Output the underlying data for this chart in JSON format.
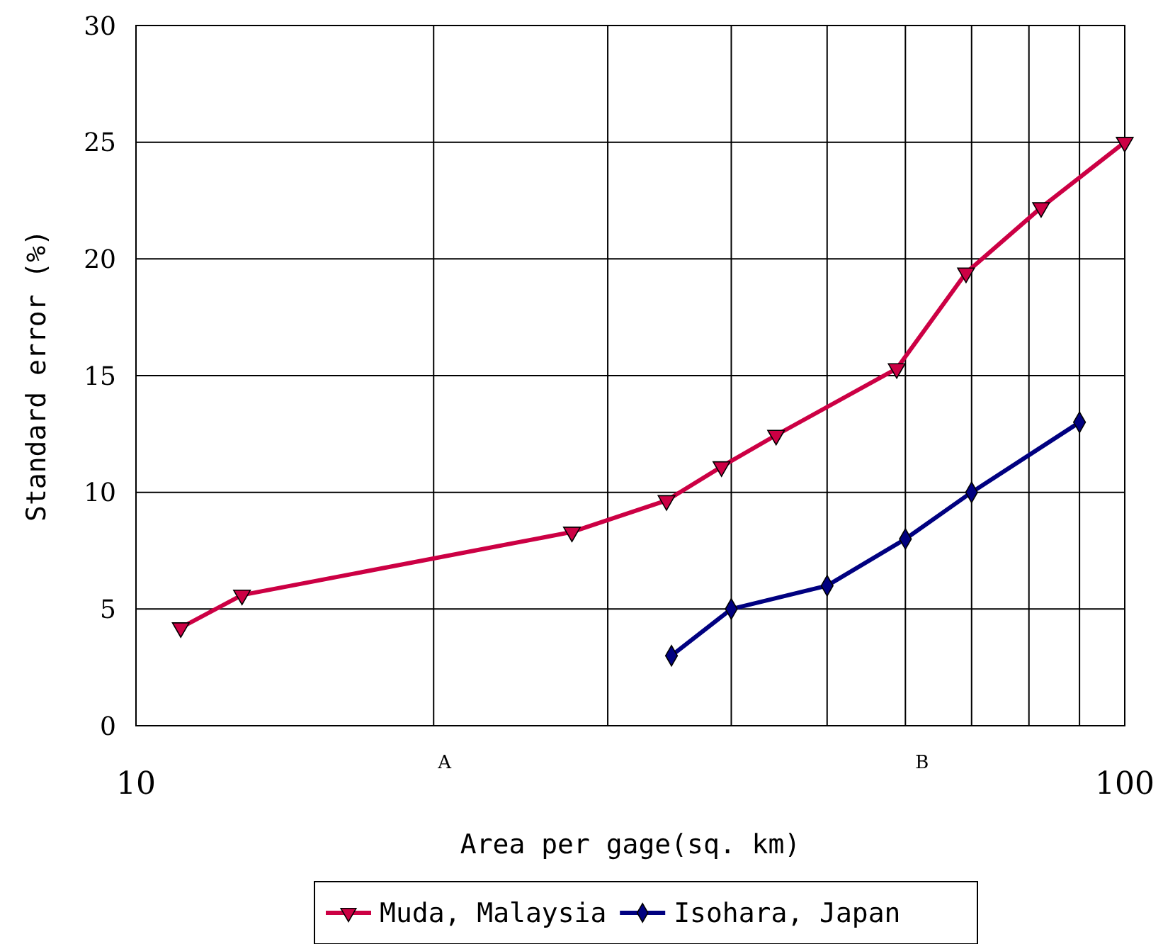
{
  "chart_data": {
    "type": "line",
    "xlabel": "Area per gage(sq. km)",
    "ylabel": "Standard error (%)",
    "log": "x",
    "xlim": [
      10,
      100
    ],
    "xticks": [
      10,
      {
        "value": 20,
        "label": null
      },
      {
        "value": 30,
        "label": null
      },
      {
        "value": 40,
        "label": null
      },
      {
        "value": 50,
        "label": null
      },
      {
        "value": 60,
        "label": null
      },
      {
        "value": 70,
        "label": null
      },
      {
        "value": 80,
        "label": null
      },
      {
        "value": 90,
        "label": null
      },
      100
    ],
    "annotations": [
      "A",
      "B"
    ],
    "ylim": [
      0,
      30
    ],
    "yticks": [
      0,
      5,
      10,
      15,
      20,
      25,
      30
    ],
    "grid": true,
    "legend": "bottom",
    "series": [
      {
        "name": "Muda, Malaysia",
        "color": "#cc0044",
        "marker": "triangle",
        "x": [
          11.1,
          12.8,
          27.6,
          34.4,
          39.1,
          44.4,
          58.8,
          69.1,
          82.3,
          100
        ],
        "values": [
          4.2,
          5.6,
          8.3,
          9.65,
          11.1,
          12.45,
          15.3,
          19.4,
          22.2,
          25.0
        ]
      },
      {
        "name": "Isohara, Japan",
        "color": "#000080",
        "marker": "diamond",
        "x": [
          34.8,
          40,
          50,
          60,
          70,
          90
        ],
        "values": [
          3.0,
          5.0,
          6.0,
          8.0,
          10.0,
          13.0
        ]
      }
    ]
  }
}
